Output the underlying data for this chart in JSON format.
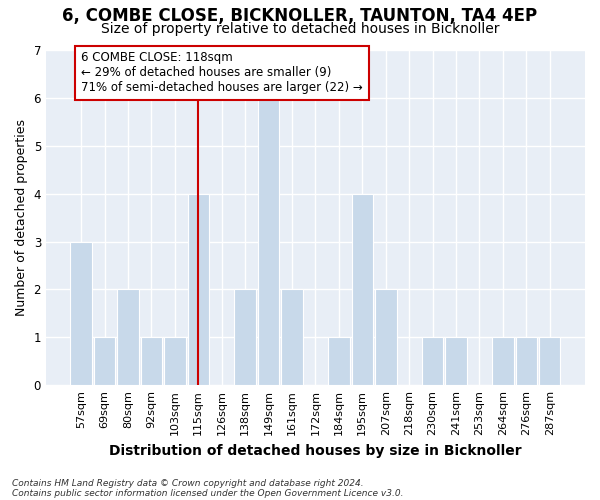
{
  "title": "6, COMBE CLOSE, BICKNOLLER, TAUNTON, TA4 4EP",
  "subtitle": "Size of property relative to detached houses in Bicknoller",
  "xlabel": "Distribution of detached houses by size in Bicknoller",
  "ylabel": "Number of detached properties",
  "categories": [
    "57sqm",
    "69sqm",
    "80sqm",
    "92sqm",
    "103sqm",
    "115sqm",
    "126sqm",
    "138sqm",
    "149sqm",
    "161sqm",
    "172sqm",
    "184sqm",
    "195sqm",
    "207sqm",
    "218sqm",
    "230sqm",
    "241sqm",
    "253sqm",
    "264sqm",
    "276sqm",
    "287sqm"
  ],
  "values": [
    3,
    1,
    2,
    1,
    1,
    4,
    0,
    2,
    6,
    2,
    0,
    1,
    4,
    2,
    0,
    1,
    1,
    0,
    1,
    1,
    1
  ],
  "redline_index": 5,
  "annotation_text": "6 COMBE CLOSE: 118sqm\n← 29% of detached houses are smaller (9)\n71% of semi-detached houses are larger (22) →",
  "annotation_box_color": "#ffffff",
  "annotation_box_edgecolor": "#cc0000",
  "bar_color": "#c8d9ea",
  "ylim": [
    0,
    7
  ],
  "yticks": [
    0,
    1,
    2,
    3,
    4,
    5,
    6,
    7
  ],
  "footer1": "Contains HM Land Registry data © Crown copyright and database right 2024.",
  "footer2": "Contains public sector information licensed under the Open Government Licence v3.0.",
  "bg_color": "#ffffff",
  "plot_bg_color": "#e8eef6",
  "grid_color": "#ffffff",
  "title_fontsize": 12,
  "subtitle_fontsize": 10,
  "tick_fontsize": 8,
  "ylabel_fontsize": 9,
  "xlabel_fontsize": 10,
  "redline_color": "#cc0000",
  "annotation_fontsize": 8.5
}
